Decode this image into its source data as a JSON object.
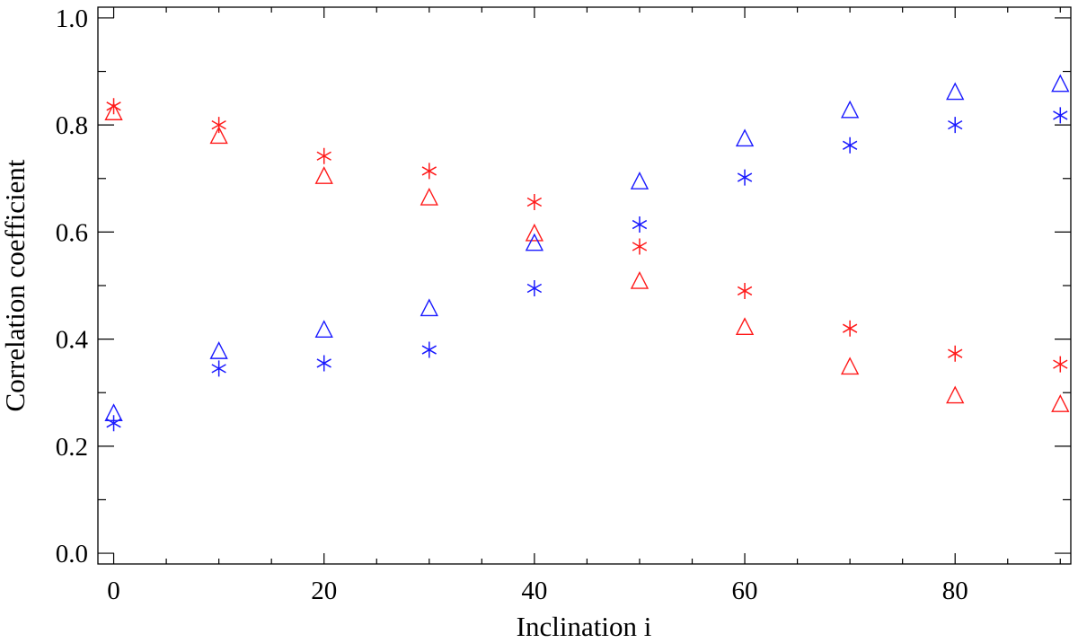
{
  "chart_data": {
    "type": "scatter",
    "title": "",
    "xlabel": "Inclination i",
    "ylabel": "Correlation coefficient",
    "xlim": [
      -1.5,
      91
    ],
    "ylim": [
      -0.02,
      1.02
    ],
    "xticks": [
      0,
      20,
      40,
      60,
      80
    ],
    "xtick_labels": [
      "0",
      "20",
      "40",
      "60",
      "80"
    ],
    "yticks": [
      0.0,
      0.2,
      0.4,
      0.6,
      0.8,
      1.0
    ],
    "ytick_labels": [
      "0.0",
      "0.2",
      "0.4",
      "0.6",
      "0.8",
      "1.0"
    ],
    "grid": false,
    "x": [
      0,
      10,
      20,
      30,
      40,
      50,
      60,
      70,
      80,
      90
    ],
    "series": [
      {
        "color": "#ff1a1a",
        "marker": "asterisk",
        "values": [
          0.835,
          0.8,
          0.742,
          0.714,
          0.656,
          0.573,
          0.49,
          0.42,
          0.373,
          0.353
        ]
      },
      {
        "color": "#ff1a1a",
        "marker": "triangle",
        "values": [
          0.822,
          0.778,
          0.703,
          0.663,
          0.596,
          0.507,
          0.421,
          0.347,
          0.293,
          0.277
        ]
      },
      {
        "color": "#1a1aff",
        "marker": "triangle",
        "values": [
          0.26,
          0.376,
          0.416,
          0.456,
          0.578,
          0.693,
          0.773,
          0.826,
          0.86,
          0.875
        ]
      },
      {
        "color": "#1a1aff",
        "marker": "asterisk",
        "values": [
          0.243,
          0.345,
          0.355,
          0.38,
          0.495,
          0.614,
          0.702,
          0.762,
          0.8,
          0.818
        ]
      }
    ]
  }
}
